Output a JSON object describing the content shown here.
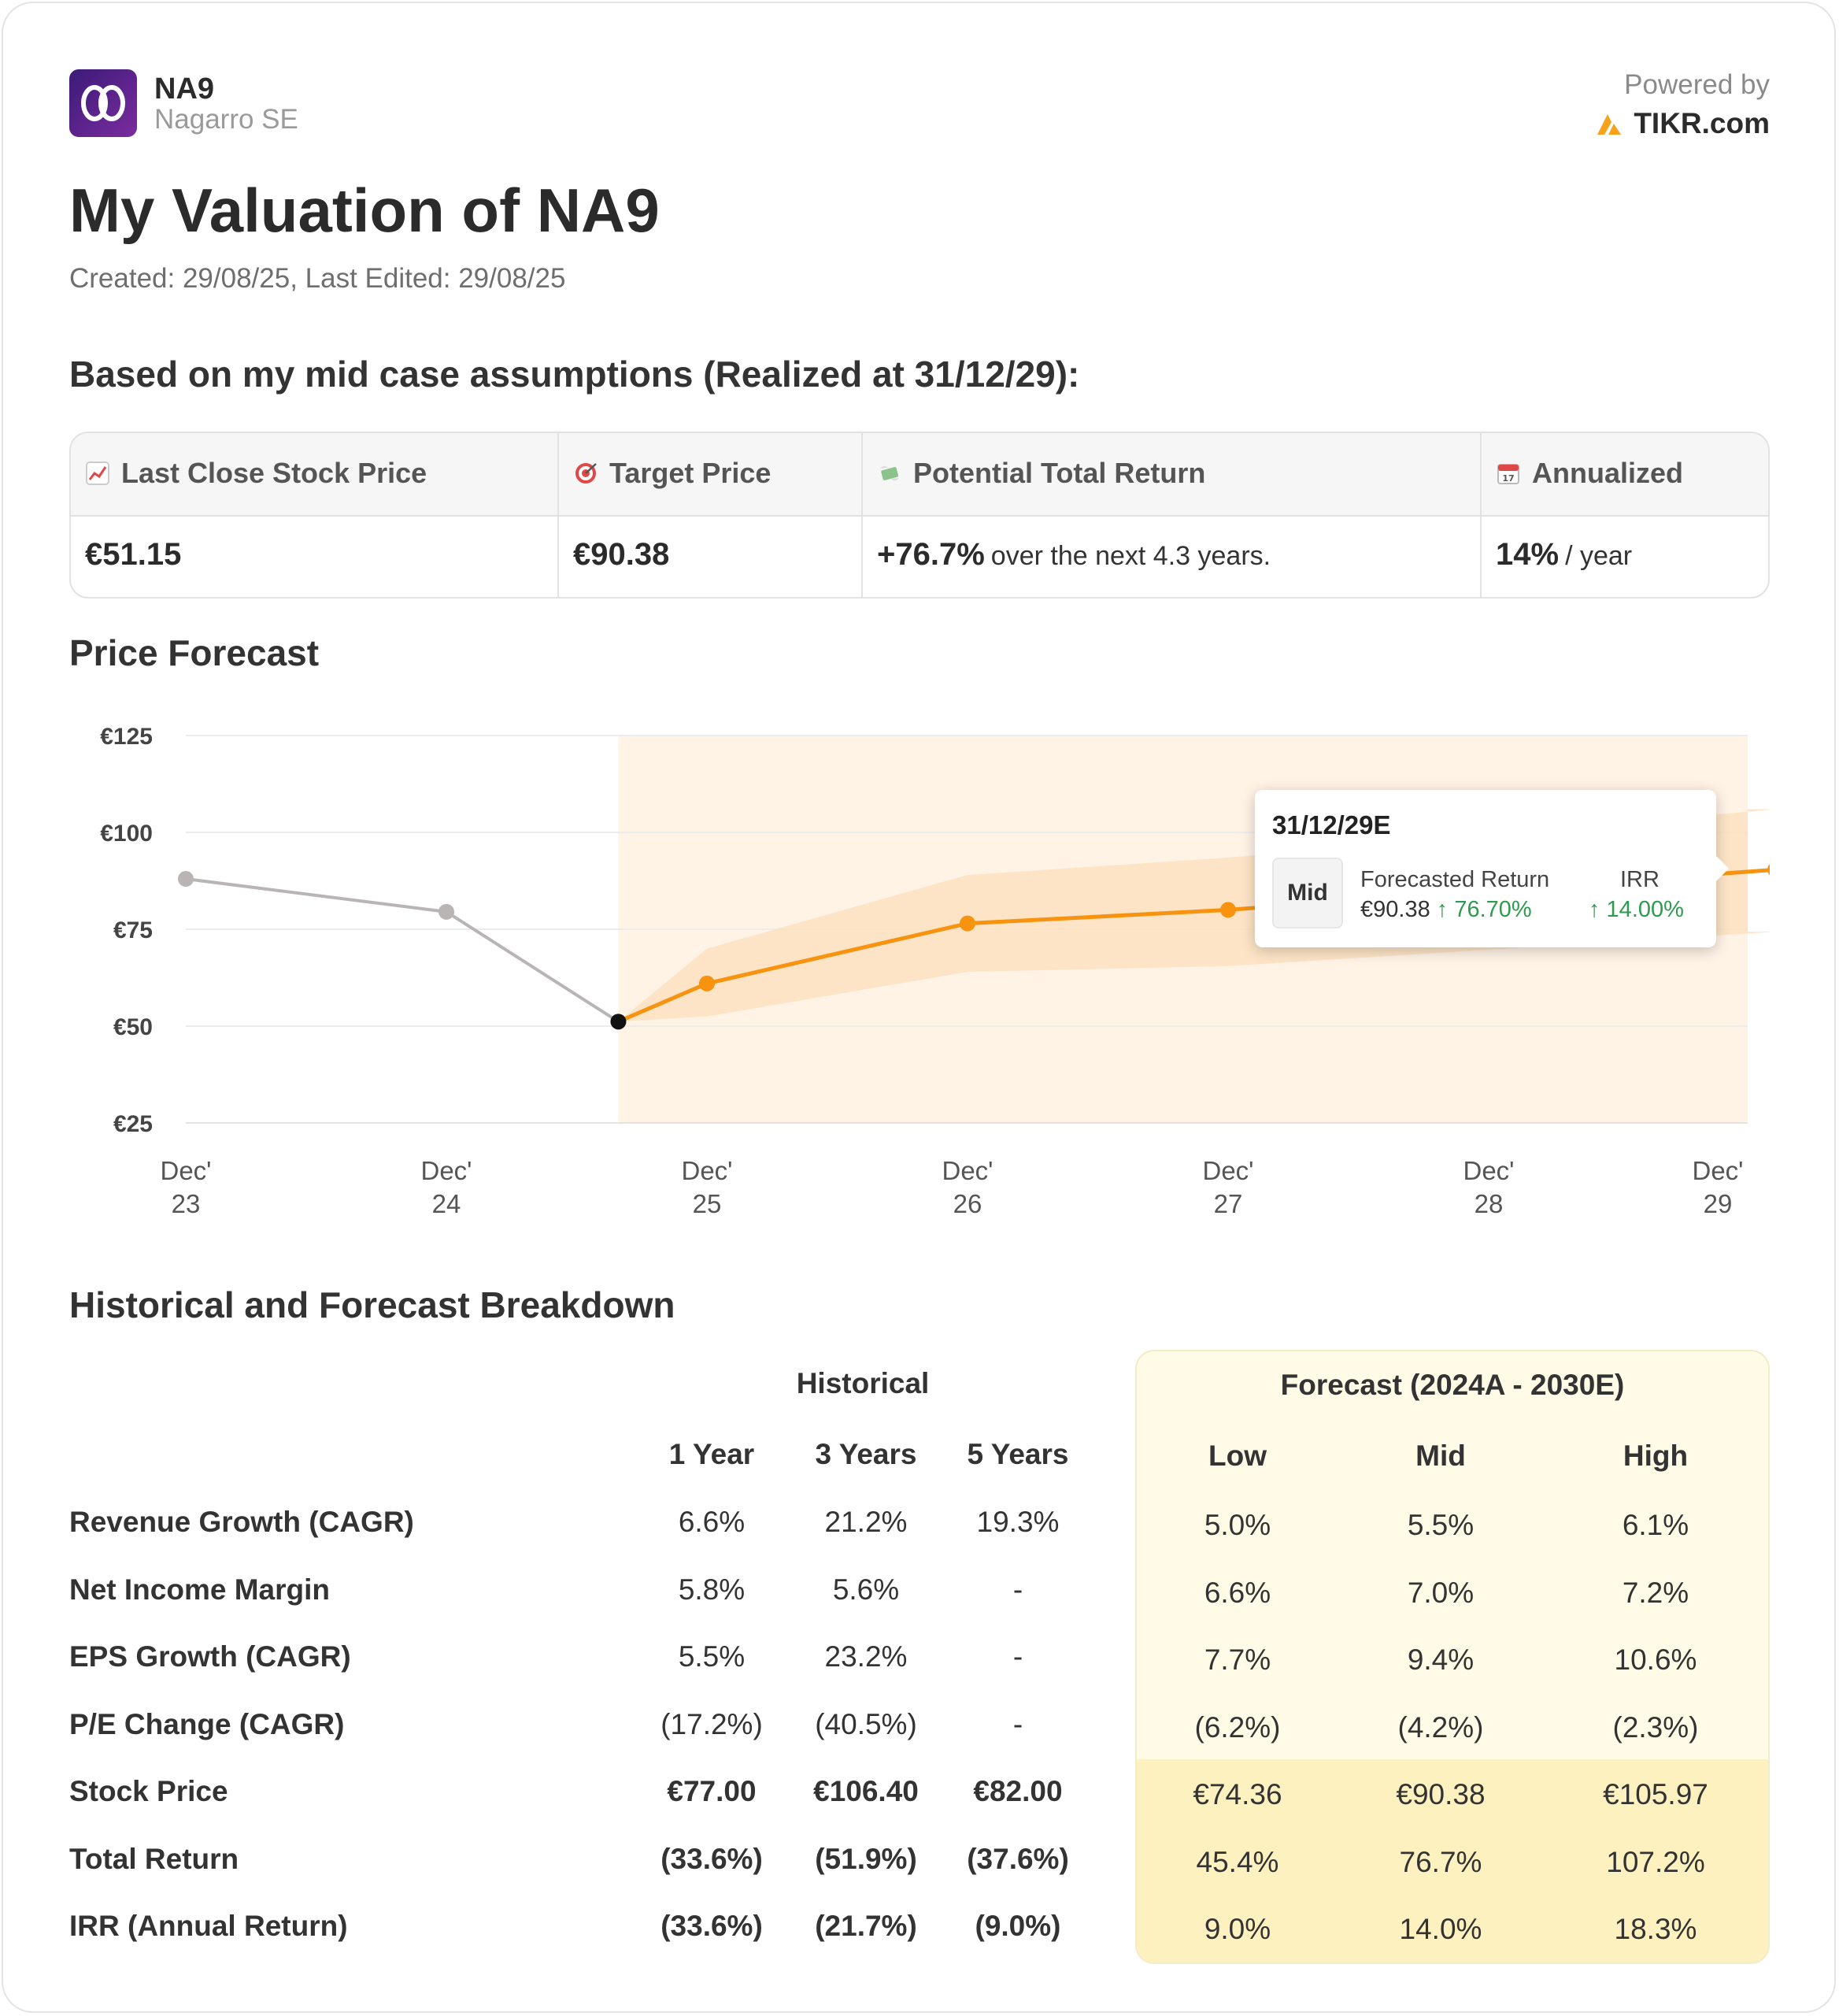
{
  "header": {
    "ticker": "NA9",
    "company": "Nagarro SE",
    "powered_by": "Powered by",
    "brand": "TIKR.com"
  },
  "title": "My Valuation of NA9",
  "dates": "Created: 29/08/25, Last Edited: 29/08/25",
  "assumptions_heading": "Based on my mid case assumptions (Realized at 31/12/29):",
  "summary": {
    "last_close_label": "Last Close Stock Price",
    "last_close_value": "€51.15",
    "target_label": "Target Price",
    "target_value": "€90.38",
    "return_label": "Potential Total Return",
    "return_value": "+76.7%",
    "return_suffix": "over the next 4.3 years.",
    "annualized_label": "Annualized",
    "annualized_value": "14%",
    "annualized_suffix": "/ year"
  },
  "price_forecast_heading": "Price Forecast",
  "chart_data": {
    "type": "line",
    "title": "Price Forecast",
    "y_ticks": [
      "€125",
      "€100",
      "€75",
      "€50",
      "€25"
    ],
    "ylim": [
      25,
      125
    ],
    "x_ticks": [
      {
        "top": "Dec'",
        "bottom": "23"
      },
      {
        "top": "Dec'",
        "bottom": "24"
      },
      {
        "top": "Dec'",
        "bottom": "25"
      },
      {
        "top": "Dec'",
        "bottom": "26"
      },
      {
        "top": "Dec'",
        "bottom": "27"
      },
      {
        "top": "Dec'",
        "bottom": "28"
      },
      {
        "top": "Dec'",
        "bottom": "29"
      }
    ],
    "historical": [
      {
        "t": 2023.0,
        "value": 88
      },
      {
        "t": 2024.0,
        "value": 79.5
      },
      {
        "t": 2024.66,
        "value": 51.15
      }
    ],
    "forecast_mid": [
      {
        "t": 2024.66,
        "value": 51.15
      },
      {
        "t": 2025.0,
        "value": 61
      },
      {
        "t": 2026.0,
        "value": 76.5
      },
      {
        "t": 2027.0,
        "value": 80
      },
      {
        "t": 2029.1,
        "value": 90.38
      }
    ],
    "forecast_low": [
      {
        "t": 2024.66,
        "value": 51.15
      },
      {
        "t": 2025.0,
        "value": 52.5
      },
      {
        "t": 2026.0,
        "value": 64
      },
      {
        "t": 2027.0,
        "value": 65.5
      },
      {
        "t": 2029.1,
        "value": 74.36
      }
    ],
    "forecast_high": [
      {
        "t": 2024.66,
        "value": 51.15
      },
      {
        "t": 2025.0,
        "value": 70
      },
      {
        "t": 2026.0,
        "value": 89
      },
      {
        "t": 2027.0,
        "value": 93.5
      },
      {
        "t": 2029.1,
        "value": 105.97
      }
    ],
    "forecast_start": 2024.66,
    "forecast_end": 2029.1,
    "colors": {
      "historical": "#b9b5b5",
      "forecast": "#f7930f",
      "band": "#fde0c0",
      "shade": "#fff3e6",
      "current": "#111111"
    }
  },
  "tooltip": {
    "date": "31/12/29E",
    "case": "Mid",
    "return_label": "Forecasted Return",
    "price": "€90.38",
    "return_pct": "↑ 76.70%",
    "irr_label": "IRR",
    "irr_value": "↑ 14.00%"
  },
  "breakdown": {
    "heading": "Historical and Forecast Breakdown",
    "historical_label": "Historical",
    "forecast_label": "Forecast (2024A - 2030E)",
    "hist_cols": [
      "1 Year",
      "3 Years",
      "5 Years"
    ],
    "fc_cols": [
      "Low",
      "Mid",
      "High"
    ],
    "rows": [
      {
        "label": "Revenue Growth (CAGR)",
        "hist": [
          "6.6%",
          "21.2%",
          "19.3%"
        ],
        "fc": [
          "5.0%",
          "5.5%",
          "6.1%"
        ]
      },
      {
        "label": "Net Income Margin",
        "hist": [
          "5.8%",
          "5.6%",
          "-"
        ],
        "fc": [
          "6.6%",
          "7.0%",
          "7.2%"
        ]
      },
      {
        "label": "EPS Growth (CAGR)",
        "hist": [
          "5.5%",
          "23.2%",
          "-"
        ],
        "fc": [
          "7.7%",
          "9.4%",
          "10.6%"
        ]
      },
      {
        "label": "P/E Change (CAGR)",
        "hist": [
          "(17.2%)",
          "(40.5%)",
          "-"
        ],
        "fc": [
          "(6.2%)",
          "(4.2%)",
          "(2.3%)"
        ]
      },
      {
        "label": "Stock Price",
        "hist": [
          "€77.00",
          "€106.40",
          "€82.00"
        ],
        "fc": [
          "€74.36",
          "€90.38",
          "€105.97"
        ]
      },
      {
        "label": "Total Return",
        "hist": [
          "(33.6%)",
          "(51.9%)",
          "(37.6%)"
        ],
        "fc": [
          "45.4%",
          "76.7%",
          "107.2%"
        ]
      },
      {
        "label": "IRR (Annual Return)",
        "hist": [
          "(33.6%)",
          "(21.7%)",
          "(9.0%)"
        ],
        "fc": [
          "9.0%",
          "14.0%",
          "18.3%"
        ]
      }
    ]
  }
}
